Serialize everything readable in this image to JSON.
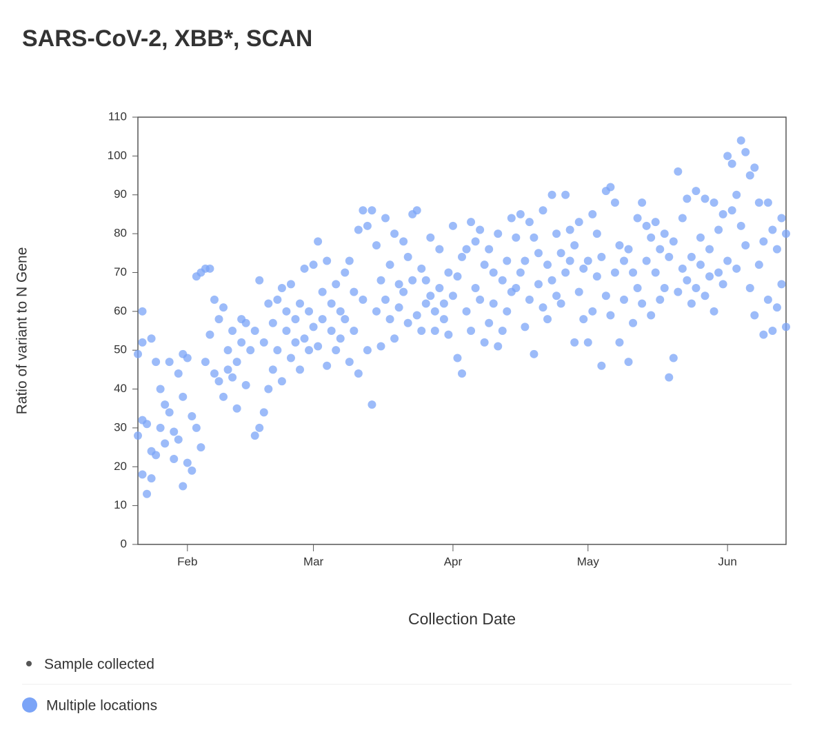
{
  "chart_data": {
    "type": "scatter",
    "title": "SARS-CoV-2, XBB*, SCAN",
    "xlabel": "Collection Date",
    "ylabel": "Ratio of variant to N Gene",
    "xlim": [
      21,
      165
    ],
    "xticks": [
      {
        "value": 32,
        "label": "Feb"
      },
      {
        "value": 60,
        "label": "Mar"
      },
      {
        "value": 91,
        "label": "Apr"
      },
      {
        "value": 121,
        "label": "May"
      },
      {
        "value": 152,
        "label": "Jun"
      }
    ],
    "ylim": [
      0,
      110
    ],
    "yticks": [
      0,
      10,
      20,
      30,
      40,
      50,
      60,
      70,
      80,
      90,
      100,
      110
    ],
    "marker_note": "Sample collected",
    "series": [
      {
        "name": "Multiple locations",
        "color": "#7ba4f7",
        "x": [
          21,
          21,
          22,
          22,
          22,
          22,
          23,
          23,
          24,
          24,
          24,
          25,
          25,
          26,
          26,
          27,
          27,
          28,
          28,
          29,
          29,
          30,
          30,
          31,
          31,
          31,
          32,
          32,
          33,
          33,
          34,
          34,
          35,
          35,
          36,
          36,
          37,
          37,
          38,
          38,
          39,
          39,
          40,
          40,
          41,
          41,
          42,
          42,
          43,
          43,
          44,
          44,
          45,
          45,
          46,
          47,
          47,
          48,
          48,
          49,
          49,
          50,
          50,
          51,
          51,
          52,
          52,
          53,
          53,
          54,
          54,
          55,
          55,
          56,
          56,
          57,
          57,
          58,
          58,
          59,
          59,
          60,
          60,
          61,
          61,
          62,
          62,
          63,
          63,
          64,
          64,
          65,
          65,
          66,
          66,
          67,
          67,
          68,
          68,
          69,
          69,
          70,
          70,
          71,
          71,
          72,
          72,
          73,
          73,
          74,
          74,
          75,
          75,
          76,
          76,
          77,
          77,
          78,
          78,
          79,
          79,
          80,
          80,
          81,
          81,
          82,
          82,
          83,
          83,
          84,
          84,
          85,
          85,
          86,
          86,
          87,
          87,
          88,
          88,
          89,
          89,
          90,
          90,
          91,
          91,
          92,
          92,
          93,
          93,
          94,
          94,
          95,
          95,
          96,
          96,
          97,
          97,
          98,
          98,
          99,
          99,
          100,
          100,
          101,
          101,
          102,
          102,
          103,
          103,
          104,
          104,
          105,
          105,
          106,
          106,
          107,
          107,
          108,
          108,
          109,
          109,
          110,
          110,
          111,
          111,
          112,
          112,
          113,
          113,
          114,
          114,
          115,
          115,
          116,
          116,
          117,
          117,
          118,
          118,
          119,
          119,
          120,
          120,
          121,
          121,
          122,
          122,
          123,
          123,
          124,
          124,
          125,
          125,
          126,
          126,
          127,
          127,
          128,
          128,
          129,
          129,
          130,
          130,
          131,
          131,
          132,
          132,
          133,
          133,
          134,
          134,
          135,
          135,
          136,
          136,
          137,
          137,
          138,
          138,
          139,
          139,
          140,
          140,
          141,
          141,
          142,
          142,
          143,
          143,
          144,
          144,
          145,
          145,
          146,
          146,
          147,
          147,
          148,
          148,
          149,
          149,
          150,
          150,
          151,
          151,
          152,
          152,
          153,
          153,
          154,
          154,
          155,
          155,
          156,
          156,
          157,
          157,
          158,
          158,
          159,
          159,
          160,
          160,
          161,
          161,
          162,
          162,
          163,
          163,
          164,
          164,
          165,
          165
        ],
        "values": [
          49,
          28,
          60,
          52,
          32,
          18,
          13,
          31,
          24,
          17,
          53,
          47,
          23,
          30,
          40,
          36,
          26,
          47,
          34,
          22,
          29,
          44,
          27,
          49,
          15,
          38,
          48,
          21,
          33,
          19,
          69,
          30,
          25,
          70,
          47,
          71,
          71,
          54,
          63,
          44,
          58,
          42,
          61,
          38,
          50,
          45,
          43,
          55,
          47,
          35,
          58,
          52,
          57,
          41,
          50,
          28,
          55,
          30,
          68,
          34,
          52,
          62,
          40,
          57,
          45,
          63,
          50,
          66,
          42,
          55,
          60,
          48,
          67,
          52,
          58,
          62,
          45,
          71,
          53,
          60,
          50,
          72,
          56,
          78,
          51,
          65,
          58,
          73,
          46,
          62,
          55,
          67,
          50,
          60,
          53,
          70,
          58,
          73,
          47,
          65,
          55,
          81,
          44,
          86,
          63,
          82,
          50,
          86,
          36,
          77,
          60,
          68,
          51,
          84,
          63,
          72,
          58,
          80,
          53,
          67,
          61,
          78,
          65,
          74,
          57,
          85,
          68,
          86,
          59,
          71,
          55,
          68,
          62,
          79,
          64,
          60,
          55,
          76,
          66,
          62,
          58,
          70,
          54,
          82,
          64,
          69,
          48,
          74,
          44,
          76,
          60,
          83,
          55,
          78,
          66,
          81,
          63,
          72,
          52,
          76,
          57,
          70,
          62,
          80,
          51,
          68,
          55,
          73,
          60,
          84,
          65,
          79,
          66,
          85,
          70,
          73,
          56,
          83,
          63,
          79,
          49,
          75,
          67,
          86,
          61,
          72,
          58,
          90,
          68,
          80,
          64,
          75,
          62,
          90,
          70,
          81,
          73,
          77,
          52,
          83,
          65,
          71,
          58,
          73,
          52,
          85,
          60,
          80,
          69,
          74,
          46,
          91,
          64,
          92,
          59,
          88,
          70,
          77,
          52,
          73,
          63,
          76,
          47,
          70,
          57,
          84,
          66,
          88,
          62,
          82,
          73,
          79,
          59,
          83,
          70,
          76,
          63,
          80,
          66,
          74,
          43,
          78,
          48,
          96,
          65,
          84,
          71,
          89,
          68,
          74,
          62,
          91,
          66,
          79,
          72,
          89,
          64,
          76,
          69,
          88,
          60,
          81,
          70,
          85,
          67,
          100,
          73,
          98,
          86,
          90,
          71,
          104,
          82,
          101,
          77,
          95,
          66,
          97,
          59,
          88,
          72,
          78,
          54,
          88,
          63,
          81,
          55,
          76,
          61,
          84,
          67,
          80,
          56
        ]
      }
    ]
  }
}
